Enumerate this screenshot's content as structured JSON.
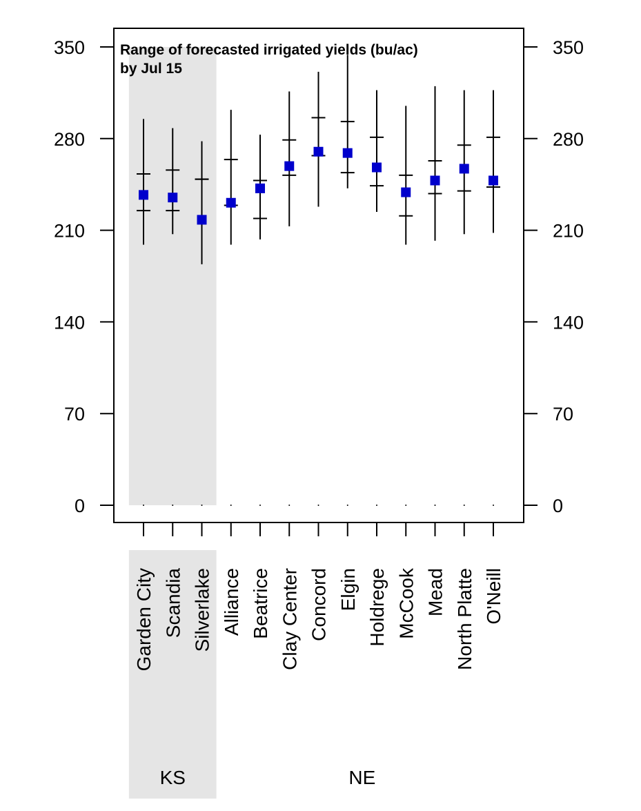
{
  "chart_data": {
    "type": "scatter",
    "title_lines": [
      "Range of forecasted irrigated yields (bu/ac)",
      "by Jul 15"
    ],
    "xlabel": "",
    "ylabel": "",
    "ylim": [
      0,
      350
    ],
    "yticks": [
      0,
      70,
      140,
      210,
      280,
      350
    ],
    "grid": false,
    "groups": [
      {
        "label": "KS",
        "categories": [
          "Garden City",
          "Scandia",
          "Silverlake"
        ],
        "shaded": true
      },
      {
        "label": "NE",
        "categories": [
          "Alliance",
          "Beatrice",
          "Clay Center",
          "Concord",
          "Elgin",
          "Holdrege",
          "McCook",
          "Mead",
          "North Platte",
          "O'Neill"
        ],
        "shaded": false
      }
    ],
    "categories": [
      "Garden City",
      "Scandia",
      "Silverlake",
      "Alliance",
      "Beatrice",
      "Clay Center",
      "Concord",
      "Elgin",
      "Holdrege",
      "McCook",
      "Mead",
      "North Platte",
      "O'Neill"
    ],
    "series": [
      {
        "values": [
          237,
          235,
          218,
          231,
          242,
          259,
          270,
          269,
          258,
          239,
          248,
          257,
          248
        ],
        "color": "#0000cc",
        "marker": "square"
      }
    ],
    "ranges": {
      "min": [
        199,
        207,
        184,
        199,
        203,
        213,
        228,
        242,
        224,
        199,
        202,
        207,
        208
      ],
      "max": [
        295,
        288,
        278,
        302,
        283,
        316,
        331,
        344,
        317,
        305,
        320,
        317,
        317
      ],
      "q_low": [
        225,
        225,
        249,
        229,
        219,
        252,
        267,
        254,
        244,
        221,
        238,
        240,
        243
      ],
      "q_high": [
        253,
        256,
        249,
        264,
        248,
        279,
        296,
        293,
        281,
        252,
        263,
        275,
        281
      ]
    }
  }
}
